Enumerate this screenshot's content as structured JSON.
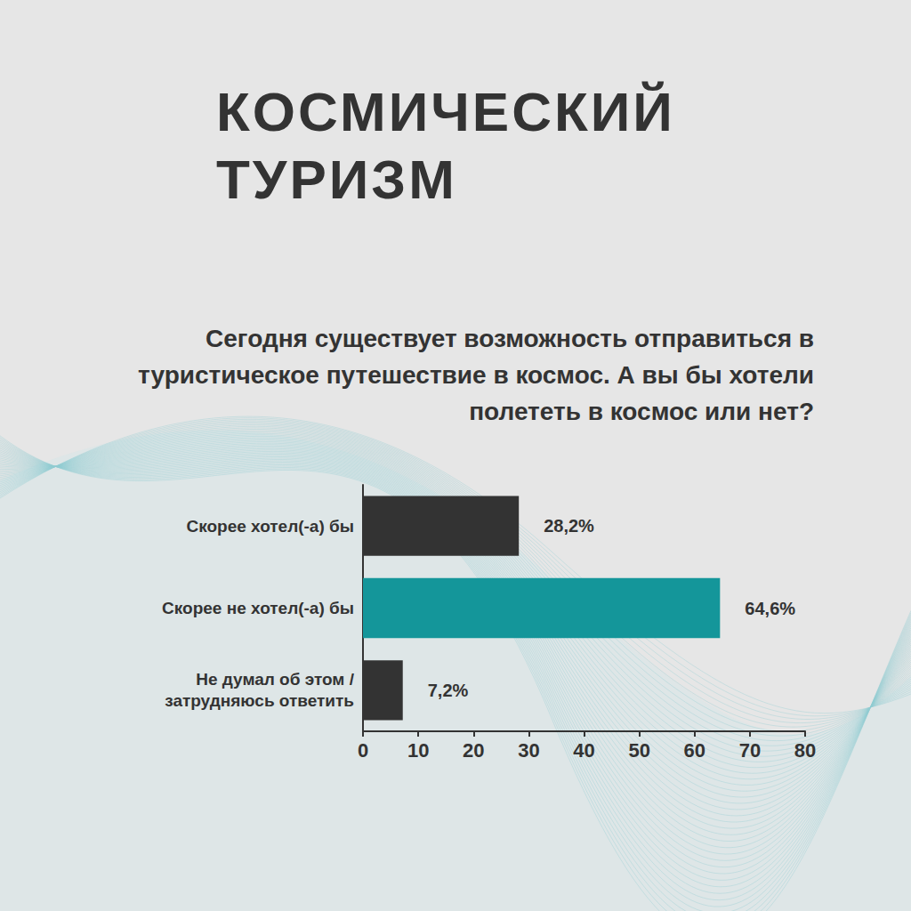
{
  "chart_data": {
    "type": "bar",
    "title": "КОСМИЧЕСКИЙ ТУРИЗМ",
    "subtitle": "Сегодня существует возможность отправиться в туристическое путешествие в космос. А вы бы хотели полететь в космос или нет?",
    "orientation": "horizontal",
    "categories": [
      "Скорее хотел(-а) бы",
      "Скорее не хотел(-а) бы",
      "Не думал об этом / затрудняюсь ответить"
    ],
    "values": [
      28.2,
      64.6,
      7.2
    ],
    "value_labels": [
      "28,2%",
      "64,6%",
      "7,2%"
    ],
    "colors": [
      "#333333",
      "#14969a",
      "#333333"
    ],
    "xlim": [
      0,
      80
    ],
    "xticks": [
      0,
      10,
      20,
      30,
      40,
      50,
      60,
      70,
      80
    ],
    "data_labels": true,
    "grid": false
  }
}
